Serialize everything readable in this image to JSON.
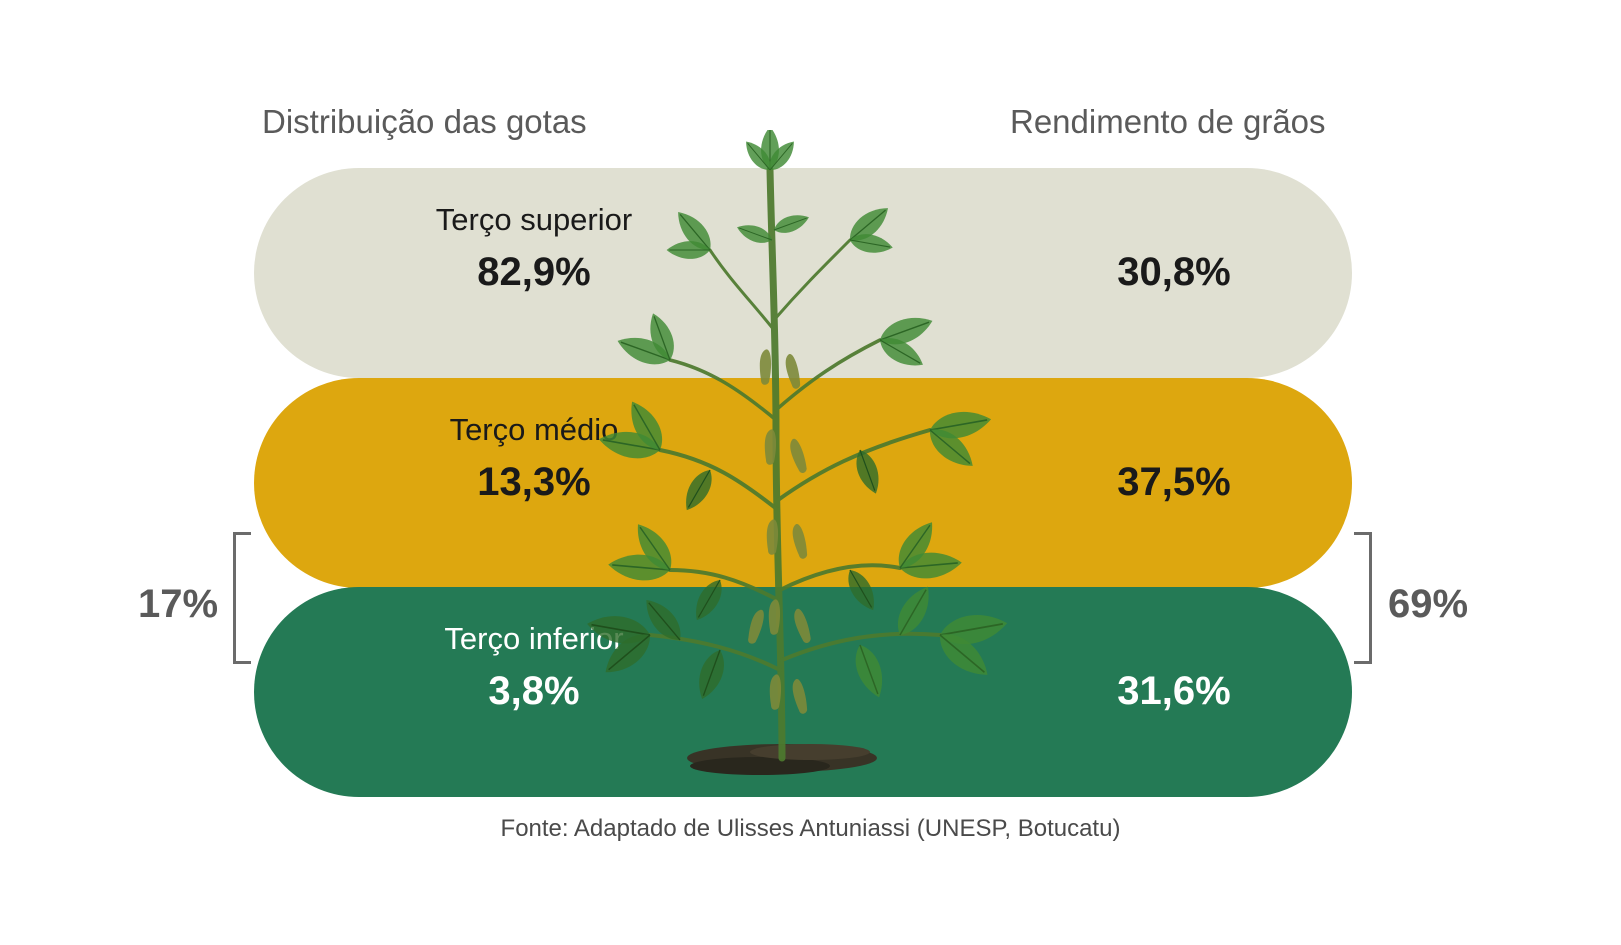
{
  "headings": {
    "left": "Distribuição das gotas",
    "right": "Rendimento de grãos"
  },
  "bands": [
    {
      "label": "Terço superior",
      "droplet_distribution": "82,9%",
      "grain_yield": "30,8%",
      "color": "#e0e0d2"
    },
    {
      "label": "Terço médio",
      "droplet_distribution": "13,3%",
      "grain_yield": "37,5%",
      "color": "#dda70f"
    },
    {
      "label": "Terço inferior",
      "droplet_distribution": "3,8%",
      "grain_yield": "31,6%",
      "color": "#247a55"
    }
  ],
  "brackets": {
    "left": "17%",
    "right": "69%"
  },
  "source": "Fonte: Adaptado de Ulisses Antuniassi (UNESP, Botucatu)",
  "illustration": "soybean-plant-icon"
}
